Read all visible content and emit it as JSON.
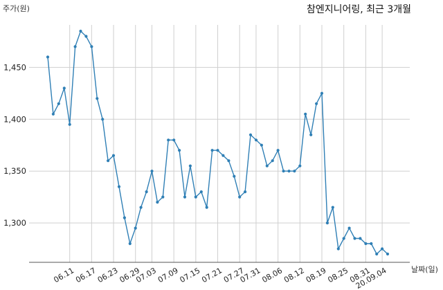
{
  "chart_data": {
    "type": "line",
    "title": "참엔지니어링, 최근 3개월",
    "ylabel": "주가(원)",
    "xlabel": "날짜(일)",
    "ylim": [
      1262,
      1495
    ],
    "yticks": [
      1300,
      1350,
      1400,
      1450
    ],
    "ytick_labels": [
      "1,300",
      "1,350",
      "1,400",
      "1,450"
    ],
    "x_tick_labels": [
      "06.11",
      "06.17",
      "06.23",
      "06.29",
      "07.03",
      "07.09",
      "07.15",
      "07.21",
      "07.27",
      "07.31",
      "08.06",
      "08.12",
      "08.19",
      "08.25",
      "08.31",
      "20.09.04"
    ],
    "x_tick_index": [
      4,
      8,
      12,
      16,
      19,
      23,
      27,
      31,
      35,
      38,
      42,
      46,
      50,
      54,
      58,
      61
    ],
    "grid": true,
    "line_color": "#2f7fb5",
    "series": [
      {
        "values": [
          1460,
          1405,
          1415,
          1430,
          1395,
          1470,
          1485,
          1480,
          1470,
          1420,
          1400,
          1360,
          1365,
          1335,
          1305,
          1280,
          1295,
          1315,
          1330,
          1350,
          1320,
          1325,
          1380,
          1380,
          1370,
          1325,
          1355,
          1325,
          1330,
          1315,
          1370,
          1370,
          1365,
          1360,
          1345,
          1325,
          1330,
          1385,
          1380,
          1375,
          1355,
          1360,
          1370,
          1350,
          1350,
          1350,
          1355,
          1405,
          1385,
          1415,
          1425,
          1300,
          1315,
          1275,
          1285,
          1295,
          1285,
          1285,
          1280,
          1280,
          1270,
          1275,
          1270
        ]
      }
    ]
  }
}
